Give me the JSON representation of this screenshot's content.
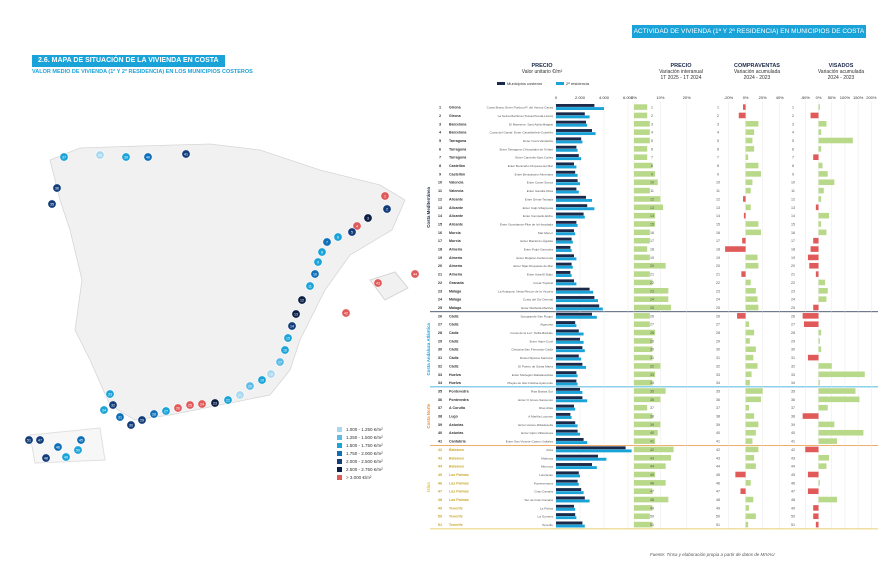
{
  "section_tag": "2.6. MAPA DE SITUACIÓN DE LA VIVIENDA EN COSTA",
  "subtitle": "VALOR MEDIO DE VIVIENDA (1ª Y 2ª RESIDENCIA) EN LOS MUNICIPIOS COSTEROS",
  "banner": "ACTIVIDAD DE VIVIENDA (1ª Y 2ª RESIDENCIA) EN MUNICIPIOS DE COSTA",
  "source": "Fuente: Tinsa y elaboración propia a partir de datos de MIVAU",
  "legend_map": [
    {
      "label": "1.000 - 1.250 €/m²",
      "color": "#a8d8ef"
    },
    {
      "label": "1.250 - 1.500 €/m²",
      "color": "#5bbbe6"
    },
    {
      "label": "1.500 - 1.750 €/m²",
      "color": "#1aa3d8"
    },
    {
      "label": "1.750 - 2.000 €/m²",
      "color": "#0e6fb8"
    },
    {
      "label": "2.000 - 2.500 €/m²",
      "color": "#123d7a"
    },
    {
      "label": "2.500 - 2.750 €/m²",
      "color": "#0b1f44"
    },
    {
      "label": "> 3.000 €/m²",
      "color": "#e05a5a"
    }
  ],
  "headers": {
    "precio": {
      "title": "PRECIO",
      "sub": "Valor unitario €/m²",
      "legend1": "Municipios costeros",
      "legend2": "2ª residencia",
      "ticks": [
        "0",
        "2.000",
        "4.000",
        "6.000"
      ]
    },
    "var": {
      "title": "PRECIO",
      "sub1": "Variación interanual",
      "sub2": "1T 2025 - 1T 2024",
      "ticks": [
        "0%",
        "10%",
        "20%"
      ]
    },
    "comp": {
      "title": "COMPRAVENTAS",
      "sub1": "Variación acumulada",
      "sub2": "2024 - 2023",
      "ticks": [
        "-20%",
        "0%",
        "20%",
        "40%"
      ]
    },
    "vis": {
      "title": "VISADOS",
      "sub1": "Variación acumulada",
      "sub2": "2024 - 2023",
      "ticks": [
        "-50%",
        "0%",
        "50%",
        "100%",
        "150%",
        "200%"
      ]
    }
  },
  "groups": [
    {
      "name": "Costa Mediterránea",
      "color": "#1b2a4a",
      "from": 1,
      "to": 25
    },
    {
      "name": "Costa Andaluza Atlántica",
      "color": "#1aa3d8",
      "from": 26,
      "to": 34
    },
    {
      "name": "Costa Norte",
      "color": "#e8923a",
      "from": 35,
      "to": 41
    },
    {
      "name": "Islas",
      "color": "#e0c045",
      "from": 42,
      "to": 51
    }
  ],
  "rows": [
    {
      "n": 1,
      "prov": "Girona",
      "zone": "Costa Brava: Enter Portbou-P. del Ventós Cassà"
    },
    {
      "n": 2,
      "prov": "Girona",
      "zone": "La Selva Marítima (Tossa-Pineda-Lloret)"
    },
    {
      "n": 3,
      "prov": "Barcelona",
      "zone": "El Maresme: Sant Adrià-Malgrat"
    },
    {
      "n": 4,
      "prov": "Barcelona",
      "zone": "Costa del Garraf: Enter Castelldefels-Cubelles"
    },
    {
      "n": 5,
      "prov": "Tarragona",
      "zone": "Enter Cunit-Vandellòs"
    },
    {
      "n": 6,
      "prov": "Tarragona",
      "zone": "Enter Tarragona-L'Hospitalet de l'Infant"
    },
    {
      "n": 7,
      "prov": "Tarragona",
      "zone": "Enter Cambrils-Sant Carles"
    },
    {
      "n": 8,
      "prov": "Castellón",
      "zone": "Enter Benicarló-Oropesa del Mar"
    },
    {
      "n": 9,
      "prov": "Castellón",
      "zone": "Enter Benicàssim-Almenara"
    },
    {
      "n": 10,
      "prov": "Valencia",
      "zone": "Enter Canet-Sueca"
    },
    {
      "n": 11,
      "prov": "Valencia",
      "zone": "Enter Gandia-Oliva"
    },
    {
      "n": 12,
      "prov": "Alicante",
      "zone": "Enter Dénia-Teulada"
    },
    {
      "n": 13,
      "prov": "Alicante",
      "zone": "Enter Calp-Villajoyosa"
    },
    {
      "n": 14,
      "prov": "Alicante",
      "zone": "Enter Campello-Elche"
    },
    {
      "n": 15,
      "prov": "Alicante",
      "zone": "Enter Guardamar-Pilar de la Horadada"
    },
    {
      "n": 16,
      "prov": "Murcia",
      "zone": "Mar Menor"
    },
    {
      "n": 17,
      "prov": "Murcia",
      "zone": "Enter Mazarrón-Águilas"
    },
    {
      "n": 18,
      "prov": "Almería",
      "zone": "Enter Pulpí-Garrucha"
    },
    {
      "n": 19,
      "prov": "Almería",
      "zone": "Enter Mojácar-Carboneras"
    },
    {
      "n": 20,
      "prov": "Almería",
      "zone": "Enter Níjar-Roquetas de Mar"
    },
    {
      "n": 21,
      "prov": "Almería",
      "zone": "Enter Adra-El Ejido"
    },
    {
      "n": 22,
      "prov": "Granada",
      "zone": "Costa Tropical"
    },
    {
      "n": 23,
      "prov": "Málaga",
      "zone": "La Axarquía: Nerja-Rincón de la Victoria"
    },
    {
      "n": 24,
      "prov": "Málaga",
      "zone": "Costa del Sol Oriental"
    },
    {
      "n": 25,
      "prov": "Málaga",
      "zone": "Enter Marbella-Manilva"
    },
    {
      "n": 26,
      "prov": "Cádiz",
      "zone": "Sotogrande-San Roque"
    },
    {
      "n": 27,
      "prov": "Cádiz",
      "zone": "Algeciras"
    },
    {
      "n": 28,
      "prov": "Cádiz",
      "zone": "Costa de la Luz: Tarifa-Barbate"
    },
    {
      "n": 29,
      "prov": "Cádiz",
      "zone": "Enter Vejer-Conil"
    },
    {
      "n": 30,
      "prov": "Cádiz",
      "zone": "Chiclana-San Fernando-Cádiz"
    },
    {
      "n": 31,
      "prov": "Cádiz",
      "zone": "Rota-Chipiona-Sanlúcar"
    },
    {
      "n": 32,
      "prov": "Cádiz",
      "zone": "El Puerto de Santa María"
    },
    {
      "n": 33,
      "prov": "Huelva",
      "zone": "Enter Mazagón-Matalascañas"
    },
    {
      "n": 34,
      "prov": "Huelva",
      "zone": "Playas de Isla Cristina-Ayamonte"
    },
    {
      "n": 35,
      "prov": "Pontevedra",
      "zone": "Rías Baixas Sur"
    },
    {
      "n": 36,
      "prov": "Pontevedra",
      "zone": "Enter O Grove-Sanxenxo"
    },
    {
      "n": 37,
      "prov": "A Coruña",
      "zone": "Rías Altas"
    },
    {
      "n": 38,
      "prov": "Lugo",
      "zone": "A Mariña Lucense"
    },
    {
      "n": 39,
      "prov": "Asturias",
      "zone": "Enter Llanes-Ribadesella"
    },
    {
      "n": 40,
      "prov": "Asturias",
      "zone": "Enter Gijón-Villaviciosa"
    },
    {
      "n": 41,
      "prov": "Cantabria",
      "zone": "Enter San Vicente-Castro Urdiales"
    },
    {
      "n": 42,
      "prov": "Baleares",
      "zone": "Ibiza"
    },
    {
      "n": 43,
      "prov": "Baleares",
      "zone": "Mallorca"
    },
    {
      "n": 44,
      "prov": "Baleares",
      "zone": "Menorca"
    },
    {
      "n": 45,
      "prov": "Las Palmas",
      "zone": "Lanzarote"
    },
    {
      "n": 46,
      "prov": "Las Palmas",
      "zone": "Fuerteventura"
    },
    {
      "n": 47,
      "prov": "Las Palmas",
      "zone": "Gran Canaria"
    },
    {
      "n": 48,
      "prov": "Las Palmas",
      "zone": "Sur de Gran Canaria"
    },
    {
      "n": 49,
      "prov": "Tenerife",
      "zone": "La Palma"
    },
    {
      "n": 50,
      "prov": "Tenerife",
      "zone": "La Gomera"
    },
    {
      "n": 51,
      "prov": "Tenerife",
      "zone": "Tenerife"
    }
  ],
  "chart_data": [
    {
      "type": "bar",
      "title": "PRECIO",
      "subtitle": "Valor unitario €/m²",
      "xlim": [
        0,
        6000
      ],
      "series": [
        {
          "name": "Municipios costeros",
          "values": [
            3200,
            2400,
            2500,
            3000,
            2100,
            1700,
            1900,
            1500,
            1600,
            1800,
            1700,
            2500,
            2600,
            2300,
            1700,
            1500,
            1300,
            1200,
            1500,
            1300,
            1200,
            1500,
            2800,
            3200,
            3600,
            3000,
            1600,
            1900,
            2000,
            2200,
            1900,
            2200,
            1700,
            1700,
            2000,
            2200,
            1500,
            1200,
            1600,
            1800,
            2300,
            5800,
            3500,
            3000,
            1900,
            1800,
            2100,
            2400,
            1500,
            1600,
            2200
          ]
        },
        {
          "name": "2ª residencia",
          "values": [
            4000,
            2800,
            2600,
            3300,
            2200,
            1800,
            2100,
            1700,
            1800,
            2000,
            1900,
            3000,
            3200,
            2400,
            1800,
            1600,
            1400,
            1300,
            1700,
            1400,
            1300,
            1700,
            3100,
            3500,
            3900,
            3400,
            1700,
            2300,
            2300,
            2400,
            2100,
            2500,
            1800,
            1800,
            2200,
            2600,
            1600,
            1300,
            1800,
            2000,
            2600,
            6300,
            4200,
            3400,
            2000,
            1900,
            2300,
            2800,
            1600,
            1700,
            2400
          ]
        }
      ]
    },
    {
      "type": "bar",
      "title": "PRECIO",
      "subtitle": "Variación interanual 1T 2025 - 1T 2024",
      "xlim": [
        0,
        25
      ],
      "values": [
        5,
        5,
        6,
        6,
        6,
        5,
        5,
        7,
        8,
        9,
        6,
        10,
        11,
        8,
        8,
        6,
        6,
        5,
        6,
        12,
        6,
        7,
        13,
        13,
        14,
        6,
        6,
        8,
        7,
        7,
        7,
        10,
        8,
        7,
        12,
        10,
        5,
        7,
        10,
        9,
        8,
        15,
        14,
        12,
        8,
        12,
        7,
        13,
        7,
        6,
        7
      ]
    },
    {
      "type": "bar",
      "title": "COMPRAVENTAS",
      "subtitle": "Variación acumulada 2024 - 2023",
      "xlim": [
        -30,
        45
      ],
      "values": [
        -3,
        -8,
        15,
        10,
        8,
        10,
        3,
        15,
        18,
        8,
        6,
        -3,
        6,
        -2,
        15,
        18,
        -4,
        -24,
        14,
        15,
        -5,
        6,
        12,
        14,
        15,
        -10,
        4,
        10,
        5,
        12,
        9,
        14,
        7,
        5,
        20,
        18,
        4,
        10,
        15,
        12,
        8,
        15,
        10,
        12,
        -12,
        6,
        -6,
        9,
        4,
        12,
        3
      ]
    },
    {
      "type": "bar",
      "title": "VISADOS",
      "subtitle": "Variación acumulada 2024 - 2023",
      "xlim": [
        -70,
        210
      ],
      "values": [
        5,
        -30,
        30,
        10,
        130,
        10,
        -20,
        15,
        35,
        60,
        20,
        10,
        -10,
        40,
        10,
        30,
        -20,
        -30,
        -40,
        -35,
        -10,
        25,
        35,
        30,
        -20,
        -60,
        -55,
        10,
        5,
        10,
        -40,
        50,
        175,
        5,
        140,
        155,
        35,
        -60,
        60,
        170,
        70,
        -50,
        40,
        30,
        -40,
        5,
        -40,
        70,
        -20,
        -20,
        -10
      ]
    }
  ]
}
